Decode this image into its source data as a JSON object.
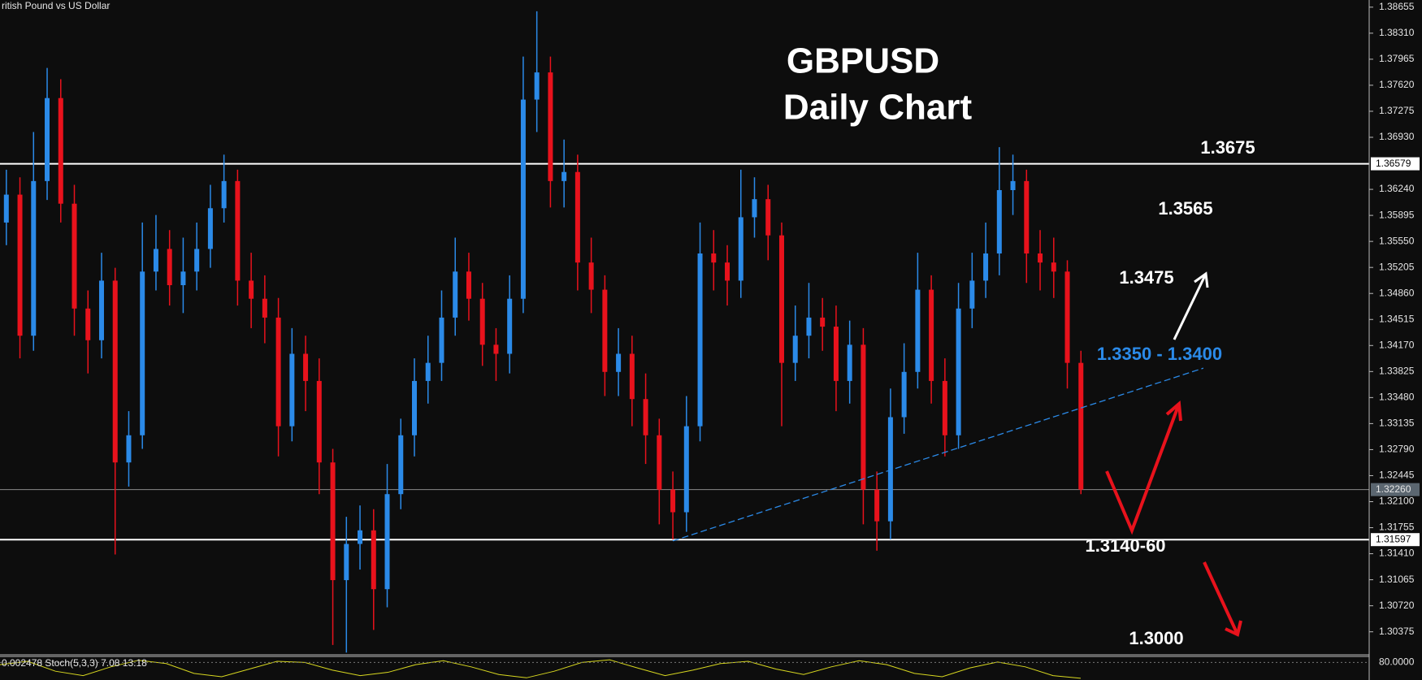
{
  "chart_data": {
    "type": "candlestick",
    "source_label": "ritish Pound vs US Dollar",
    "title": "GBPUSD",
    "subtitle": "Daily Chart",
    "ylim": [
      1.3007,
      1.3875
    ],
    "yticks": [
      {
        "value": 1.38655,
        "label": "1.38655"
      },
      {
        "value": 1.3831,
        "label": "1.38310"
      },
      {
        "value": 1.37965,
        "label": "1.37965"
      },
      {
        "value": 1.3762,
        "label": "1.37620"
      },
      {
        "value": 1.37275,
        "label": "1.37275"
      },
      {
        "value": 1.3693,
        "label": "1.36930"
      },
      {
        "value": 1.3624,
        "label": "1.36240"
      },
      {
        "value": 1.35895,
        "label": "1.35895"
      },
      {
        "value": 1.3555,
        "label": "1.35550"
      },
      {
        "value": 1.35205,
        "label": "1.35205"
      },
      {
        "value": 1.3486,
        "label": "1.34860"
      },
      {
        "value": 1.34515,
        "label": "1.34515"
      },
      {
        "value": 1.3417,
        "label": "1.34170"
      },
      {
        "value": 1.33825,
        "label": "1.33825"
      },
      {
        "value": 1.3348,
        "label": "1.33480"
      },
      {
        "value": 1.33135,
        "label": "1.33135"
      },
      {
        "value": 1.3279,
        "label": "1.32790"
      },
      {
        "value": 1.32445,
        "label": "1.32445"
      },
      {
        "value": 1.321,
        "label": "1.32100"
      },
      {
        "value": 1.31755,
        "label": "1.31755"
      },
      {
        "value": 1.3141,
        "label": "1.31410"
      },
      {
        "value": 1.31065,
        "label": "1.31065"
      },
      {
        "value": 1.3072,
        "label": "1.30720"
      },
      {
        "value": 1.30375,
        "label": "1.30375"
      }
    ],
    "hlines": [
      {
        "value": 1.36579,
        "label": "1.36579"
      },
      {
        "value": 1.31597,
        "label": "1.31597"
      }
    ],
    "price_marker": {
      "value": 1.3226,
      "label": "1.32260"
    },
    "up_color": "#2b8ae8",
    "down_color": "#e8121c",
    "open": [
      1.358,
      1.3617,
      1.343,
      1.3635,
      1.3745,
      1.3605,
      1.3466,
      1.3424,
      1.3503,
      1.3262,
      1.3298,
      1.3515,
      1.3545,
      1.3497,
      1.3515,
      1.3545,
      1.3599,
      1.3635,
      1.3503,
      1.3479,
      1.3454,
      1.331,
      1.3406,
      1.337,
      1.3262,
      1.3106,
      1.3154,
      1.3172,
      1.3094,
      1.322,
      1.3298,
      1.337,
      1.3394,
      1.3454,
      1.3515,
      1.3479,
      1.3418,
      1.3406,
      1.3479,
      1.3743,
      1.3779,
      1.3635,
      1.3647,
      1.3527,
      1.3491,
      1.3382,
      1.3406,
      1.3346,
      1.3298,
      1.3226,
      1.3196,
      1.331,
      1.3539,
      1.3527,
      1.3503,
      1.3587,
      1.3611,
      1.3563,
      1.3394,
      1.343,
      1.3454,
      1.3442,
      1.337,
      1.3418,
      1.3226,
      1.3184,
      1.3322,
      1.3382,
      1.3491,
      1.337,
      1.3298,
      1.3466,
      1.3503,
      1.3539,
      1.3623,
      1.3635,
      1.3539,
      1.3527,
      1.3515,
      1.3394
    ],
    "high": [
      1.365,
      1.364,
      1.37,
      1.3785,
      1.377,
      1.363,
      1.349,
      1.354,
      1.352,
      1.333,
      1.358,
      1.359,
      1.357,
      1.356,
      1.358,
      1.363,
      1.367,
      1.365,
      1.354,
      1.351,
      1.348,
      1.344,
      1.343,
      1.34,
      1.328,
      1.319,
      1.3205,
      1.32,
      1.326,
      1.332,
      1.34,
      1.343,
      1.349,
      1.356,
      1.354,
      1.35,
      1.344,
      1.351,
      1.38,
      1.386,
      1.38,
      1.369,
      1.367,
      1.356,
      1.351,
      1.344,
      1.343,
      1.338,
      1.332,
      1.325,
      1.335,
      1.358,
      1.357,
      1.355,
      1.365,
      1.364,
      1.363,
      1.358,
      1.347,
      1.35,
      1.348,
      1.347,
      1.345,
      1.344,
      1.325,
      1.336,
      1.342,
      1.354,
      1.351,
      1.34,
      1.35,
      1.354,
      1.358,
      1.368,
      1.367,
      1.365,
      1.357,
      1.356,
      1.353,
      1.341
    ],
    "low": [
      1.355,
      1.34,
      1.341,
      1.361,
      1.358,
      1.343,
      1.338,
      1.34,
      1.314,
      1.323,
      1.328,
      1.349,
      1.347,
      1.346,
      1.349,
      1.352,
      1.358,
      1.347,
      1.344,
      1.342,
      1.327,
      1.329,
      1.333,
      1.322,
      1.302,
      1.301,
      1.312,
      1.304,
      1.307,
      1.32,
      1.327,
      1.334,
      1.337,
      1.343,
      1.345,
      1.339,
      1.337,
      1.338,
      1.346,
      1.37,
      1.36,
      1.36,
      1.349,
      1.346,
      1.335,
      1.335,
      1.331,
      1.326,
      1.318,
      1.316,
      1.317,
      1.329,
      1.349,
      1.347,
      1.348,
      1.356,
      1.353,
      1.331,
      1.337,
      1.34,
      1.341,
      1.333,
      1.334,
      1.318,
      1.3145,
      1.316,
      1.33,
      1.336,
      1.334,
      1.327,
      1.328,
      1.344,
      1.348,
      1.351,
      1.359,
      1.35,
      1.349,
      1.348,
      1.336,
      1.322
    ],
    "close": [
      1.3617,
      1.343,
      1.3635,
      1.3745,
      1.3605,
      1.3466,
      1.3424,
      1.3503,
      1.3262,
      1.3298,
      1.3515,
      1.3545,
      1.3497,
      1.3515,
      1.3545,
      1.3599,
      1.3635,
      1.3503,
      1.3479,
      1.3454,
      1.331,
      1.3406,
      1.337,
      1.3262,
      1.3106,
      1.3154,
      1.3172,
      1.3094,
      1.322,
      1.3298,
      1.337,
      1.3394,
      1.3454,
      1.3515,
      1.3479,
      1.3418,
      1.3406,
      1.3479,
      1.3743,
      1.3779,
      1.3635,
      1.3647,
      1.3527,
      1.3491,
      1.3382,
      1.3406,
      1.3346,
      1.3298,
      1.3226,
      1.3196,
      1.331,
      1.3539,
      1.3527,
      1.3503,
      1.3587,
      1.3611,
      1.3563,
      1.3394,
      1.343,
      1.3454,
      1.3442,
      1.337,
      1.3418,
      1.3226,
      1.3184,
      1.3322,
      1.3382,
      1.3491,
      1.337,
      1.3298,
      1.3466,
      1.3503,
      1.3539,
      1.3623,
      1.3635,
      1.3539,
      1.3527,
      1.3515,
      1.3394,
      1.3226
    ],
    "trendline": {
      "x": [
        49,
        88
      ],
      "y": [
        1.3158,
        1.3387
      ],
      "color": "#2b8ae8"
    },
    "annotations": [
      "1.3675",
      "1.3565",
      "1.3475",
      "1.3350 - 1.3400",
      "1.3140-60",
      "1.3000"
    ],
    "stochastic": {
      "label": "0.002478 Stoch(5,3,3) 7.08 13.18",
      "color": "#d8d820",
      "values": [
        70,
        85,
        40,
        20,
        60,
        90,
        75,
        30,
        15,
        50,
        85,
        80,
        45,
        20,
        35,
        70,
        88,
        60,
        25,
        10,
        40,
        80,
        92,
        55,
        20,
        45,
        75,
        85,
        50,
        25,
        60,
        88,
        70,
        30,
        15,
        55,
        82,
        60,
        20,
        8
      ],
      "ylim": [
        0,
        100
      ],
      "yticks": [
        {
          "value": 80,
          "label": "80.0000"
        }
      ]
    }
  }
}
